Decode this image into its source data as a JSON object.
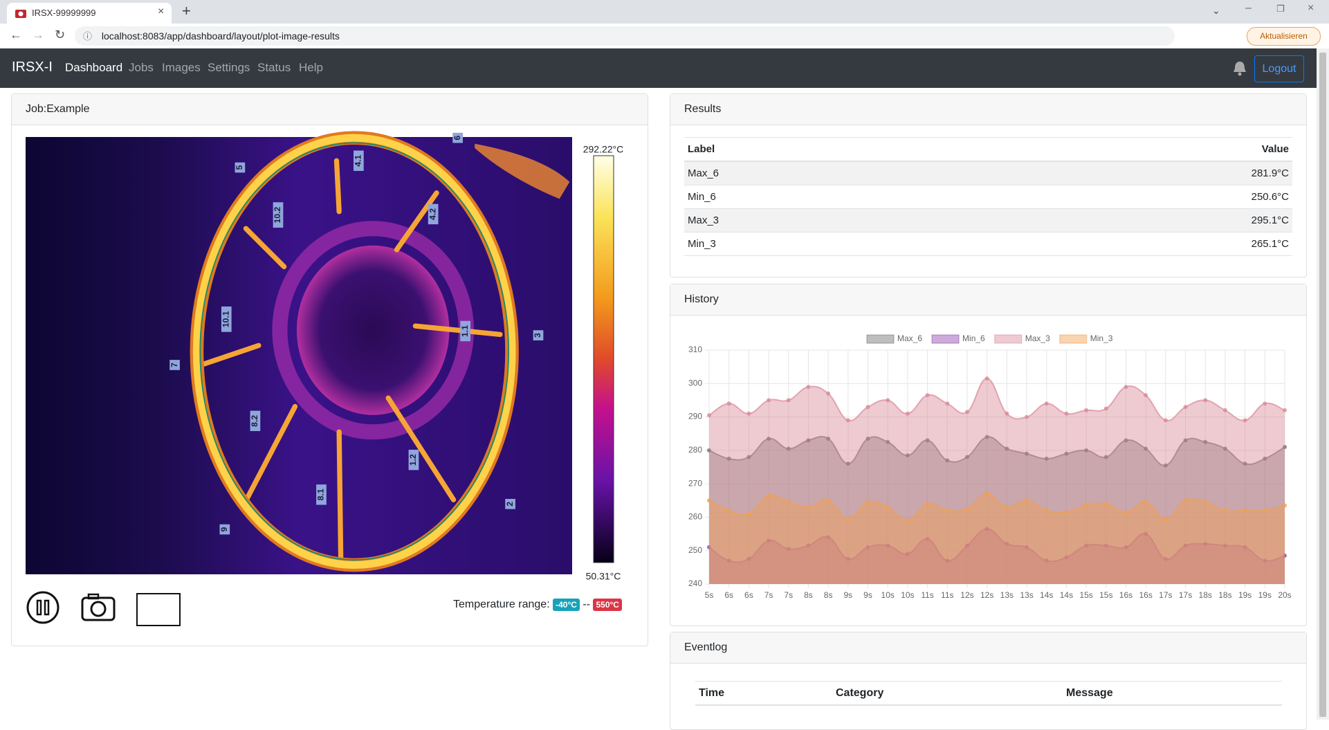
{
  "browser": {
    "tab_title": "IRSX-99999999",
    "url": "localhost:8083/app/dashboard/layout/plot-image-results",
    "update_button": "Aktualisieren"
  },
  "navbar": {
    "brand": "IRSX-I",
    "links": [
      "Dashboard",
      "Jobs",
      "Images",
      "Settings",
      "Status",
      "Help"
    ],
    "logout": "Logout"
  },
  "job_panel": {
    "title": "Job:Example",
    "image_labels": [
      "6",
      "5",
      "4.1",
      "10.2",
      "4.2",
      "10.1",
      "1.1",
      "3",
      "7",
      "8.2",
      "1.2",
      "2",
      "8.1",
      "9"
    ],
    "colorbar_max": "292.22°C",
    "colorbar_min": "50.31°C",
    "temperature_range_label": "Temperature range:",
    "range_low": "-40°C",
    "range_separator": "--",
    "range_high": "550°C"
  },
  "results": {
    "title": "Results",
    "columns": [
      "Label",
      "Value"
    ],
    "rows": [
      [
        "Max_6",
        "281.9°C"
      ],
      [
        "Min_6",
        "250.6°C"
      ],
      [
        "Max_3",
        "295.1°C"
      ],
      [
        "Min_3",
        "265.1°C"
      ]
    ]
  },
  "chart_data": {
    "type": "area",
    "title": "History",
    "x": [
      "5s",
      "6s",
      "6s",
      "7s",
      "7s",
      "8s",
      "8s",
      "9s",
      "9s",
      "10s",
      "10s",
      "11s",
      "11s",
      "12s",
      "12s",
      "13s",
      "13s",
      "14s",
      "14s",
      "15s",
      "15s",
      "16s",
      "16s",
      "17s",
      "17s",
      "18s",
      "18s",
      "19s",
      "19s",
      "20s"
    ],
    "series": [
      {
        "name": "Max_6",
        "color": "#6f6f6f",
        "values": [
          280,
          277.5,
          278,
          283.5,
          280.5,
          283,
          283.5,
          276,
          283.5,
          282.5,
          278.5,
          283,
          277,
          278,
          284,
          280.5,
          279,
          277.5,
          279,
          280,
          278,
          283,
          280.5,
          275.5,
          283,
          282.5,
          280.5,
          276,
          277.5,
          281
        ]
      },
      {
        "name": "Min_6",
        "color": "#8e44ad",
        "values": [
          251,
          247,
          247.5,
          253,
          250.5,
          251.5,
          254,
          247.5,
          251,
          251.5,
          249,
          253.5,
          247,
          251.5,
          256.5,
          252,
          251,
          247,
          248,
          251.5,
          251.5,
          251,
          255,
          247.5,
          251.5,
          252,
          251.5,
          251,
          247,
          248.5
        ]
      },
      {
        "name": "Max_3",
        "color": "#d98a9a",
        "values": [
          290.5,
          294,
          291,
          295,
          295,
          299,
          297,
          289,
          293,
          295,
          291,
          296.5,
          294,
          291.5,
          301.5,
          291,
          290,
          294,
          291,
          292,
          292.5,
          299,
          296.5,
          289,
          293,
          295,
          292,
          289,
          294,
          292
        ]
      },
      {
        "name": "Min_3",
        "color": "#f0a050",
        "values": [
          265,
          262,
          261,
          266.5,
          264.5,
          263,
          265,
          259.5,
          264.5,
          263,
          259,
          264,
          262,
          262.5,
          267,
          263,
          265,
          262,
          261.5,
          263.5,
          264,
          261.5,
          264.5,
          259.5,
          265,
          264.5,
          262,
          262,
          262,
          263.5
        ]
      }
    ],
    "ylim": [
      240,
      310
    ],
    "yticks": [
      240,
      250,
      260,
      270,
      280,
      290,
      300,
      310
    ],
    "grid": true,
    "fill": true,
    "legend": "top"
  },
  "eventlog": {
    "title": "Eventlog",
    "columns": [
      "Time",
      "Category",
      "Message"
    ]
  }
}
